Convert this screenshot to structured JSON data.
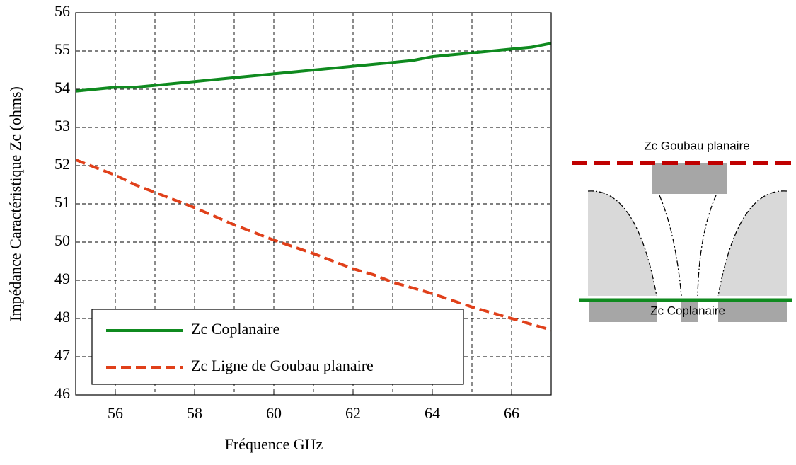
{
  "chart_data": {
    "type": "line",
    "xlabel": "Fréquence GHz",
    "ylabel": "Impédance Caractéristique Zc (ohms)",
    "xlim": [
      55,
      67
    ],
    "xticks": [
      56,
      58,
      60,
      62,
      64,
      66
    ],
    "xgrid": [
      56,
      57,
      58,
      59,
      60,
      61,
      62,
      63,
      64,
      65,
      66
    ],
    "ylim": [
      46,
      56
    ],
    "yticks": [
      46,
      47,
      48,
      49,
      50,
      51,
      52,
      53,
      54,
      55,
      56
    ],
    "grid": true,
    "legend": "lower left",
    "series": [
      {
        "name": "Zc Coplanaire",
        "color": "#0f8a1f",
        "dash": "solid",
        "x": [
          55,
          56,
          56.5,
          57,
          58,
          59,
          60,
          61,
          62,
          63,
          63.5,
          64,
          65,
          66,
          66.5,
          67
        ],
        "values": [
          53.95,
          54.05,
          54.05,
          54.1,
          54.2,
          54.3,
          54.4,
          54.5,
          54.6,
          54.7,
          54.75,
          54.85,
          54.95,
          55.05,
          55.1,
          55.2
        ]
      },
      {
        "name": "Zc Ligne de Goubau planaire",
        "color": "#e0401a",
        "dash": "dashed",
        "x": [
          55,
          56,
          56.5,
          57,
          58,
          59,
          60,
          61,
          62,
          62.5,
          63,
          64,
          65,
          66,
          67
        ],
        "values": [
          52.15,
          51.75,
          51.5,
          51.3,
          50.9,
          50.45,
          50.05,
          49.7,
          49.3,
          49.15,
          48.95,
          48.65,
          48.3,
          48.0,
          47.7
        ]
      }
    ]
  },
  "diagram": {
    "top_label": "Zc Goubau planaire",
    "bottom_label": "Zc Coplanaire"
  }
}
